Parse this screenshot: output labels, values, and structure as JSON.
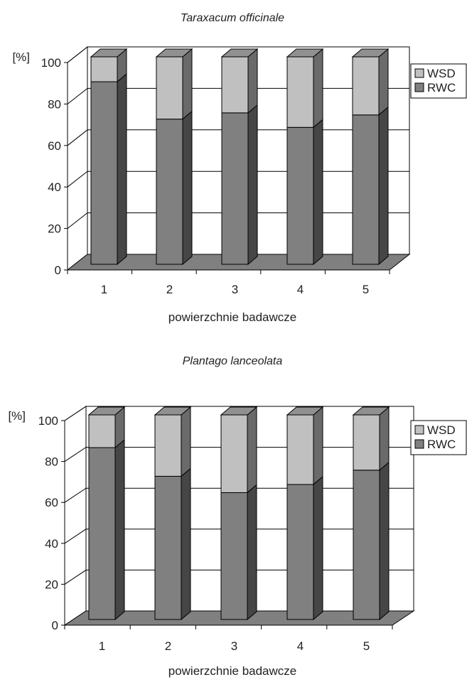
{
  "chart_data": [
    {
      "type": "bar",
      "stacked": true,
      "three_d": true,
      "title": "Taraxacum officinale",
      "ylabel": "[%]",
      "xlabel": "powierzchnie badawcze",
      "categories": [
        "1",
        "2",
        "3",
        "4",
        "5"
      ],
      "ylim": [
        0,
        100
      ],
      "yticks": [
        "0",
        "20",
        "40",
        "60",
        "80",
        "100"
      ],
      "grid": true,
      "legend": "top-right",
      "series": [
        {
          "name": "RWC",
          "values": [
            88,
            70,
            73,
            66,
            72
          ],
          "color": "#808080"
        },
        {
          "name": "WSD",
          "values": [
            12,
            30,
            27,
            34,
            28
          ],
          "color": "#c0c0c0"
        }
      ]
    },
    {
      "type": "bar",
      "stacked": true,
      "three_d": true,
      "title": "Plantago lanceolata",
      "ylabel": "[%]",
      "xlabel": "powierzchnie badawcze",
      "categories": [
        "1",
        "2",
        "3",
        "4",
        "5"
      ],
      "ylim": [
        0,
        100
      ],
      "yticks": [
        "0",
        "20",
        "40",
        "60",
        "80",
        "100"
      ],
      "grid": true,
      "legend": "top-right",
      "series": [
        {
          "name": "RWC",
          "values": [
            84,
            70,
            62,
            66,
            73
          ],
          "color": "#808080"
        },
        {
          "name": "WSD",
          "values": [
            16,
            30,
            38,
            34,
            27
          ],
          "color": "#c0c0c0"
        }
      ]
    }
  ]
}
